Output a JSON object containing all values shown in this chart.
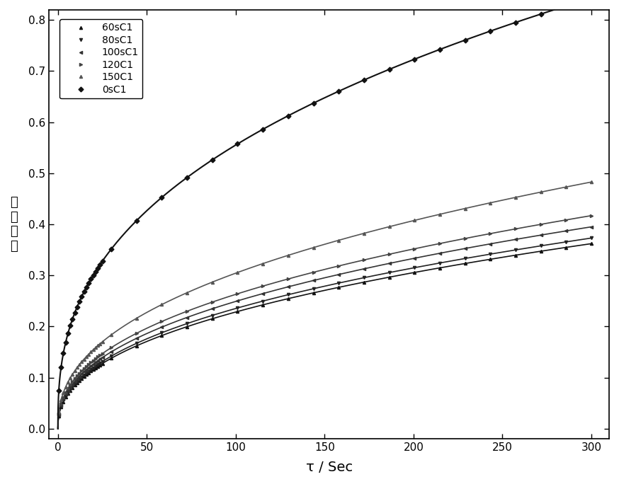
{
  "legend_labels": [
    "60sC1",
    "80sC1",
    "100sC1",
    "120C1",
    "150C1",
    "0sC1"
  ],
  "xlabel": "τ / Sec",
  "ylabel_chars": "氢\n气\n产\n率",
  "xlim": [
    -5,
    310
  ],
  "ylim": [
    -0.02,
    0.82
  ],
  "xticks": [
    0,
    50,
    100,
    150,
    200,
    250,
    300
  ],
  "yticks": [
    0.0,
    0.1,
    0.2,
    0.3,
    0.4,
    0.5,
    0.6,
    0.7,
    0.8
  ],
  "curve_0sC1": {
    "a": 0.0965,
    "b": 0.38,
    "color": "#111111",
    "marker": "D",
    "markersize": 3.5,
    "label": "0sC1"
  },
  "curves": [
    {
      "a": 0.033,
      "b": 0.42,
      "final_approx": 0.275,
      "color": "#111111",
      "marker": "^",
      "markersize": 3,
      "label": "60sC1"
    },
    {
      "a": 0.034,
      "b": 0.42,
      "final_approx": 0.285,
      "color": "#222222",
      "marker": "v",
      "markersize": 3,
      "label": "80sC1"
    },
    {
      "a": 0.036,
      "b": 0.42,
      "final_approx": 0.3,
      "color": "#333333",
      "marker": "<",
      "markersize": 3,
      "label": "100sC1"
    },
    {
      "a": 0.038,
      "b": 0.42,
      "final_approx": 0.315,
      "color": "#444444",
      "marker": ">",
      "markersize": 3,
      "label": "120C1"
    },
    {
      "a": 0.044,
      "b": 0.42,
      "final_approx": 0.37,
      "color": "#555555",
      "marker": "^",
      "markersize": 3,
      "label": "150C1"
    }
  ],
  "background_color": "#ffffff",
  "figsize": [
    8.74,
    6.84
  ],
  "dpi": 100
}
